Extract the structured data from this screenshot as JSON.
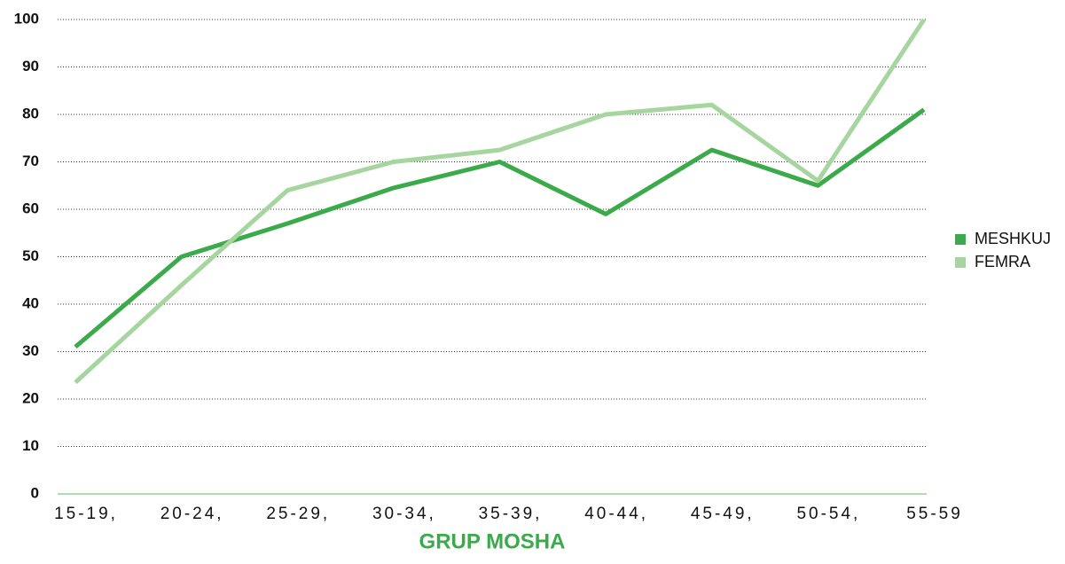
{
  "chart_data": {
    "type": "line",
    "x_label": "GRUP MOSHA",
    "categories": [
      "15-19,",
      "20-24,",
      "25-29,",
      "30-34,",
      "35-39,",
      "40-44,",
      "45-49,",
      "50-54,",
      "55-59"
    ],
    "series": [
      {
        "name": "MESHKUJ",
        "color": "#3aaa4a",
        "values": [
          31,
          50,
          57,
          64.5,
          70,
          59,
          72.5,
          65,
          81
        ]
      },
      {
        "name": "FEMRA",
        "color": "#a6d5a0",
        "values": [
          23.5,
          44,
          64,
          70,
          72.5,
          80,
          82,
          66,
          100
        ]
      }
    ],
    "ylim": [
      0,
      100
    ],
    "yticks": [
      0,
      10,
      20,
      30,
      40,
      50,
      60,
      70,
      80,
      90,
      100
    ],
    "grid": true,
    "legend": "right"
  }
}
